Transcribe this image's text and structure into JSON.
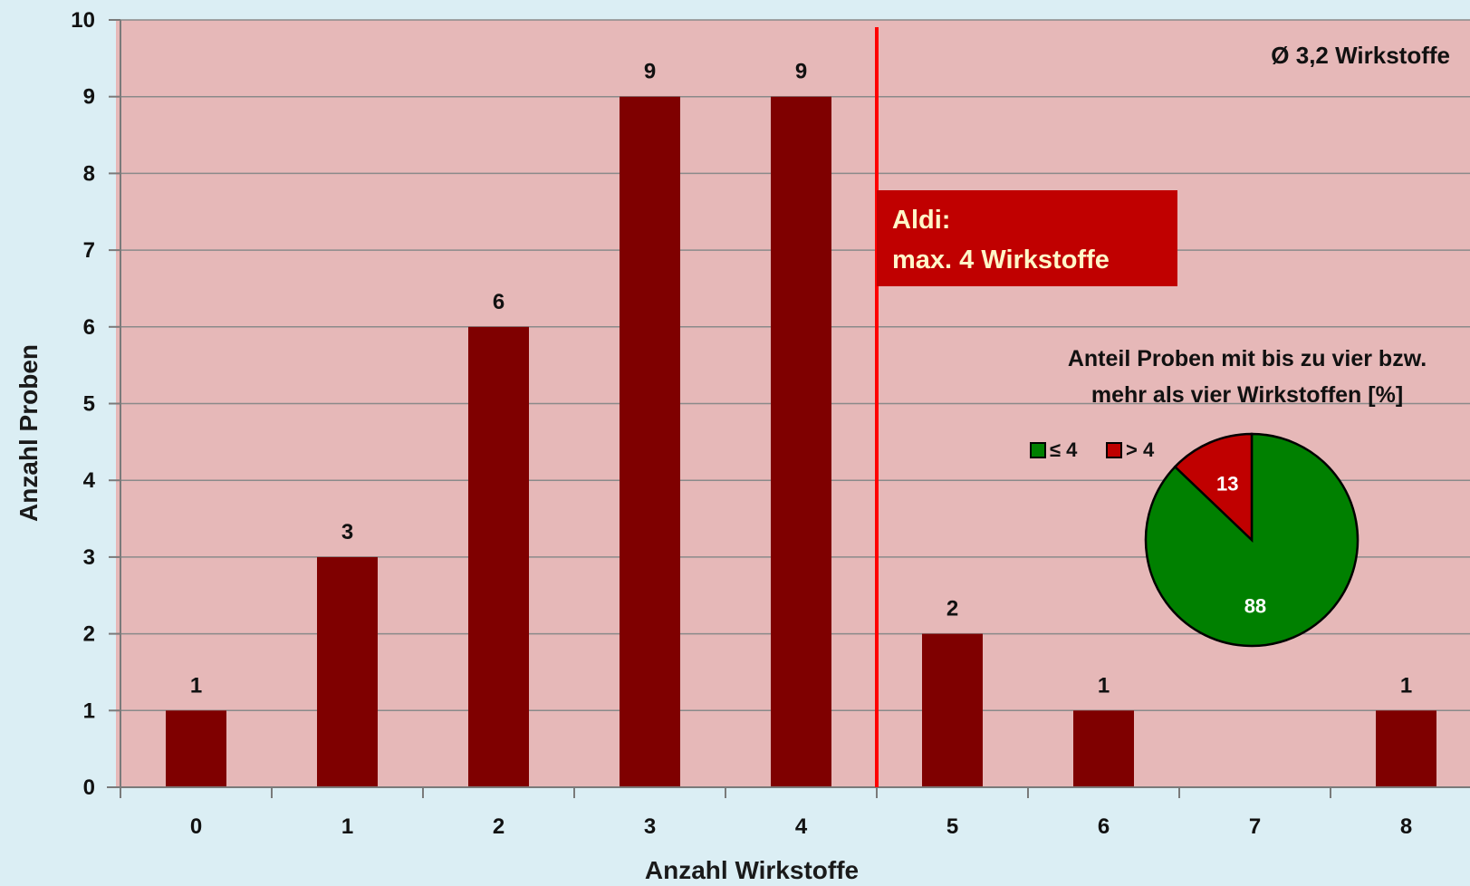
{
  "chart_data": [
    {
      "type": "bar",
      "categories": [
        "0",
        "1",
        "2",
        "3",
        "4",
        "5",
        "6",
        "7",
        "8"
      ],
      "values": [
        1,
        3,
        6,
        9,
        9,
        2,
        1,
        0,
        1
      ],
      "data_labels": [
        "1",
        "3",
        "6",
        "9",
        "9",
        "2",
        "1",
        "",
        "1"
      ],
      "xlabel": "Anzahl Wirkstoffe",
      "ylabel": "Anzahl Proben",
      "ylim": [
        0,
        10
      ],
      "y_ticks": [
        "0",
        "1",
        "2",
        "3",
        "4",
        "5",
        "6",
        "7",
        "8",
        "9",
        "10"
      ],
      "grid": true,
      "bar_color": "#7f0000",
      "plot_background": "#e6b8b8",
      "threshold_line": {
        "x": 4.5,
        "color": "#ff0000"
      },
      "callout": {
        "lines": [
          "Aldi:",
          "max. 4 Wirkstoffe"
        ],
        "background": "#c00000"
      },
      "annotation": "Ø  3,2 Wirkstoffe"
    },
    {
      "type": "pie",
      "title_lines": [
        "Anteil Proben mit bis zu vier bzw.",
        "mehr als vier Wirkstoffen [%]"
      ],
      "slices": [
        {
          "label": "≤ 4",
          "value": 88,
          "color": "#008000"
        },
        {
          "label": "> 4",
          "value": 13,
          "color": "#c00000"
        }
      ],
      "legend_placement": "top-left"
    }
  ]
}
